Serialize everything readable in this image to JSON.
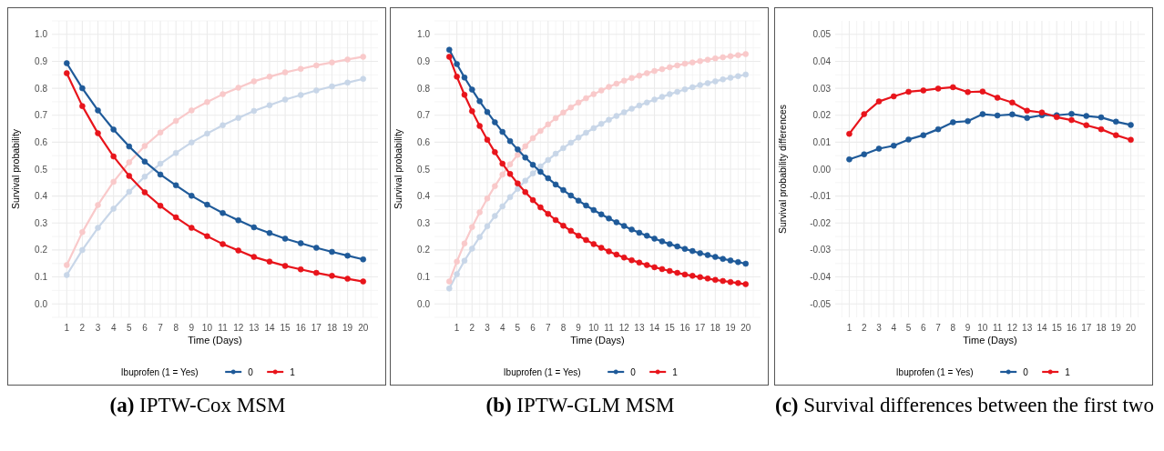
{
  "chart_data": [
    {
      "type": "line",
      "title": "(a) IPTW-Cox MSM",
      "xlabel": "Time (Days)",
      "ylabel": "Survival probability",
      "legend_title": "Ibuprofen (1 = Yes)",
      "legend": "bottom",
      "grid": true,
      "marker": "circle",
      "x": [
        1,
        2,
        3,
        4,
        5,
        6,
        7,
        8,
        9,
        10,
        11,
        12,
        13,
        14,
        15,
        16,
        17,
        18,
        19,
        20
      ],
      "xlim": [
        0.05,
        20.95
      ],
      "xticks": [
        1,
        2,
        3,
        4,
        5,
        6,
        7,
        8,
        9,
        10,
        11,
        12,
        13,
        14,
        15,
        16,
        17,
        18,
        19,
        20
      ],
      "ylim": [
        -0.05,
        1.05
      ],
      "yticks": [
        {
          "value": 0,
          "label": "0.0"
        },
        {
          "value": 0.1,
          "label": "0.1"
        },
        {
          "value": 0.2,
          "label": "0.2"
        },
        {
          "value": 0.3,
          "label": "0.3"
        },
        {
          "value": 0.4,
          "label": "0.4"
        },
        {
          "value": 0.5,
          "label": "0.5"
        },
        {
          "value": 0.6,
          "label": "0.6"
        },
        {
          "value": 0.7,
          "label": "0.7"
        },
        {
          "value": 0.8,
          "label": "0.8"
        },
        {
          "value": 0.9,
          "label": "0.9"
        },
        {
          "value": 1,
          "label": "1.0"
        }
      ],
      "series": [
        {
          "color": "#c8d6e8",
          "values": [
            0.107,
            0.2,
            0.282,
            0.353,
            0.416,
            0.472,
            0.52,
            0.56,
            0.599,
            0.632,
            0.663,
            0.69,
            0.716,
            0.737,
            0.758,
            0.775,
            0.792,
            0.807,
            0.821,
            0.835
          ]
        },
        {
          "color": "#f9c9ca",
          "values": [
            0.144,
            0.266,
            0.367,
            0.453,
            0.525,
            0.586,
            0.636,
            0.679,
            0.718,
            0.749,
            0.778,
            0.802,
            0.826,
            0.843,
            0.859,
            0.872,
            0.885,
            0.896,
            0.907,
            0.917
          ]
        },
        {
          "name": "0",
          "color": "#1f5a99",
          "values": [
            0.893,
            0.8,
            0.718,
            0.647,
            0.584,
            0.528,
            0.48,
            0.44,
            0.401,
            0.368,
            0.337,
            0.31,
            0.284,
            0.263,
            0.242,
            0.225,
            0.208,
            0.193,
            0.179,
            0.165
          ]
        },
        {
          "name": "1",
          "color": "#e8141b",
          "values": [
            0.856,
            0.734,
            0.633,
            0.547,
            0.475,
            0.414,
            0.364,
            0.321,
            0.282,
            0.251,
            0.222,
            0.198,
            0.174,
            0.157,
            0.141,
            0.128,
            0.115,
            0.104,
            0.093,
            0.083
          ]
        }
      ]
    },
    {
      "type": "line",
      "title": "(b) IPTW-GLM MSM",
      "xlabel": "Time (Days)",
      "ylabel": "Survival probability",
      "legend_title": "Ibuprofen (1 = Yes)",
      "legend": "bottom",
      "grid": true,
      "marker": "circle",
      "x": [
        0.5,
        1,
        1.5,
        2,
        2.5,
        3,
        3.5,
        4,
        4.5,
        5,
        5.5,
        6,
        6.5,
        7,
        7.5,
        8,
        8.5,
        9,
        9.5,
        10,
        10.5,
        11,
        11.5,
        12,
        12.5,
        13,
        13.5,
        14,
        14.5,
        15,
        15.5,
        16,
        16.5,
        17,
        17.5,
        18,
        18.5,
        19,
        19.5,
        20
      ],
      "xlim": [
        -0.475,
        20.975
      ],
      "xticks": [
        1,
        2,
        3,
        4,
        5,
        6,
        7,
        8,
        9,
        10,
        11,
        12,
        13,
        14,
        15,
        16,
        17,
        18,
        19,
        20
      ],
      "ylim": [
        -0.05,
        1.05
      ],
      "yticks": [
        {
          "value": 0,
          "label": "0.0"
        },
        {
          "value": 0.1,
          "label": "0.1"
        },
        {
          "value": 0.2,
          "label": "0.2"
        },
        {
          "value": 0.3,
          "label": "0.3"
        },
        {
          "value": 0.4,
          "label": "0.4"
        },
        {
          "value": 0.5,
          "label": "0.5"
        },
        {
          "value": 0.6,
          "label": "0.6"
        },
        {
          "value": 0.7,
          "label": "0.7"
        },
        {
          "value": 0.8,
          "label": "0.8"
        },
        {
          "value": 0.9,
          "label": "0.9"
        },
        {
          "value": 1,
          "label": "1.0"
        }
      ],
      "series": [
        {
          "color": "#c8d6e8",
          "values": [
            0.057,
            0.11,
            0.16,
            0.205,
            0.248,
            0.288,
            0.326,
            0.362,
            0.396,
            0.427,
            0.457,
            0.484,
            0.51,
            0.534,
            0.557,
            0.578,
            0.598,
            0.617,
            0.635,
            0.652,
            0.668,
            0.683,
            0.697,
            0.711,
            0.724,
            0.736,
            0.747,
            0.758,
            0.768,
            0.778,
            0.787,
            0.796,
            0.804,
            0.812,
            0.819,
            0.826,
            0.833,
            0.839,
            0.845,
            0.851
          ]
        },
        {
          "color": "#f9c9ca",
          "values": [
            0.083,
            0.157,
            0.224,
            0.285,
            0.34,
            0.391,
            0.437,
            0.48,
            0.518,
            0.553,
            0.585,
            0.615,
            0.642,
            0.666,
            0.689,
            0.71,
            0.729,
            0.747,
            0.763,
            0.778,
            0.792,
            0.805,
            0.817,
            0.828,
            0.838,
            0.847,
            0.856,
            0.864,
            0.871,
            0.878,
            0.885,
            0.891,
            0.896,
            0.901,
            0.906,
            0.911,
            0.915,
            0.919,
            0.923,
            0.927
          ]
        },
        {
          "name": "0",
          "color": "#1f5a99",
          "values": [
            0.943,
            0.89,
            0.84,
            0.795,
            0.752,
            0.712,
            0.674,
            0.638,
            0.604,
            0.573,
            0.543,
            0.516,
            0.49,
            0.466,
            0.443,
            0.422,
            0.402,
            0.383,
            0.365,
            0.348,
            0.332,
            0.317,
            0.303,
            0.289,
            0.276,
            0.264,
            0.253,
            0.242,
            0.232,
            0.222,
            0.213,
            0.204,
            0.196,
            0.188,
            0.181,
            0.174,
            0.167,
            0.161,
            0.155,
            0.149
          ]
        },
        {
          "name": "1",
          "color": "#e8141b",
          "values": [
            0.917,
            0.843,
            0.776,
            0.715,
            0.66,
            0.609,
            0.563,
            0.52,
            0.482,
            0.447,
            0.415,
            0.385,
            0.358,
            0.334,
            0.311,
            0.29,
            0.271,
            0.253,
            0.237,
            0.222,
            0.208,
            0.195,
            0.183,
            0.172,
            0.162,
            0.153,
            0.144,
            0.136,
            0.129,
            0.122,
            0.115,
            0.109,
            0.104,
            0.099,
            0.094,
            0.089,
            0.085,
            0.081,
            0.077,
            0.073
          ]
        }
      ]
    },
    {
      "type": "line",
      "title": "(c) Survival differences between the first two",
      "xlabel": "Time (Days)",
      "ylabel": "Survival probability differences",
      "legend_title": "Ibuprofen (1 = Yes)",
      "legend": "bottom",
      "grid": true,
      "marker": "circle",
      "x": [
        1,
        2,
        3,
        4,
        5,
        6,
        7,
        8,
        9,
        10,
        11,
        12,
        13,
        14,
        15,
        16,
        17,
        18,
        19,
        20
      ],
      "xlim": [
        0.05,
        20.95
      ],
      "xticks": [
        1,
        2,
        3,
        4,
        5,
        6,
        7,
        8,
        9,
        10,
        11,
        12,
        13,
        14,
        15,
        16,
        17,
        18,
        19,
        20
      ],
      "ylim": [
        -0.055,
        0.055
      ],
      "yticks": [
        {
          "value": -0.05,
          "label": "-0.05"
        },
        {
          "value": -0.04,
          "label": "-0.04"
        },
        {
          "value": -0.03,
          "label": "-0.03"
        },
        {
          "value": -0.02,
          "label": "-0.02"
        },
        {
          "value": -0.01,
          "label": "-0.01"
        },
        {
          "value": 0,
          "label": "0.00"
        },
        {
          "value": 0.01,
          "label": "0.01"
        },
        {
          "value": 0.02,
          "label": "0.02"
        },
        {
          "value": 0.03,
          "label": "0.03"
        },
        {
          "value": 0.04,
          "label": "0.04"
        },
        {
          "value": 0.05,
          "label": "0.05"
        }
      ],
      "series": [
        {
          "name": "0",
          "color": "#1f5a99",
          "values": [
            0.0036,
            0.0055,
            0.0076,
            0.0087,
            0.011,
            0.0126,
            0.0148,
            0.0174,
            0.0178,
            0.0204,
            0.0199,
            0.0203,
            0.019,
            0.02,
            0.02,
            0.0205,
            0.0197,
            0.0192,
            0.0176,
            0.0164
          ]
        },
        {
          "name": "1",
          "color": "#e8141b",
          "values": [
            0.0131,
            0.0204,
            0.0251,
            0.027,
            0.0287,
            0.0292,
            0.0299,
            0.0304,
            0.0286,
            0.0288,
            0.0265,
            0.0247,
            0.0217,
            0.021,
            0.0193,
            0.0182,
            0.0163,
            0.0148,
            0.0126,
            0.0109
          ]
        }
      ]
    }
  ]
}
